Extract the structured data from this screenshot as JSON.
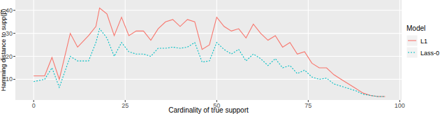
{
  "chart_data": {
    "type": "line",
    "x_label": "Cardinality of true support",
    "y_label": "Hamming distance to supp(β̂)",
    "legend_title": "Model",
    "legend": "right",
    "grid": true,
    "xlim": [
      -5,
      100.5
    ],
    "xticks": [
      0,
      25,
      50,
      75,
      100
    ],
    "ylim": [
      1,
      44.5
    ],
    "yticks": [
      10,
      20,
      30,
      40
    ],
    "x": [
      0,
      3,
      5,
      7,
      10,
      12,
      15,
      17,
      18,
      20,
      22,
      24,
      26,
      28,
      30,
      32,
      34,
      36,
      38,
      40,
      42,
      44,
      46,
      48,
      50,
      52,
      54,
      56,
      58,
      60,
      62,
      64,
      66,
      68,
      70,
      72,
      74,
      76,
      78,
      80,
      82,
      84,
      86,
      88,
      90,
      92,
      94,
      96
    ],
    "series": [
      {
        "name": "L1",
        "color": "#F8766D",
        "line_style": "solid",
        "values": [
          11.5,
          11.5,
          19.5,
          10,
          30,
          24,
          29,
          33,
          41,
          38.5,
          29,
          37,
          29,
          31,
          31,
          27,
          32,
          35,
          36,
          33,
          36,
          35,
          23,
          25,
          37,
          33,
          31,
          32,
          28,
          34,
          30,
          27,
          29,
          24,
          26,
          21,
          22,
          17,
          15,
          15,
          12,
          10,
          8,
          6,
          4,
          3,
          2.5,
          2.5
        ]
      },
      {
        "name": "Lass-0",
        "color": "#00BFC4",
        "line_style": "dotted",
        "values": [
          9,
          10,
          15,
          6.5,
          20,
          18,
          18,
          26,
          32,
          28,
          20,
          26,
          22,
          21,
          21,
          20,
          23.5,
          23.5,
          24,
          23.5,
          24,
          26,
          17.5,
          18,
          26,
          23,
          21,
          23,
          18,
          21,
          19,
          16,
          19,
          15,
          16,
          12.5,
          14,
          11,
          10,
          10.5,
          8,
          7,
          6,
          5,
          3.5,
          3,
          2.5,
          2.5
        ]
      }
    ]
  }
}
